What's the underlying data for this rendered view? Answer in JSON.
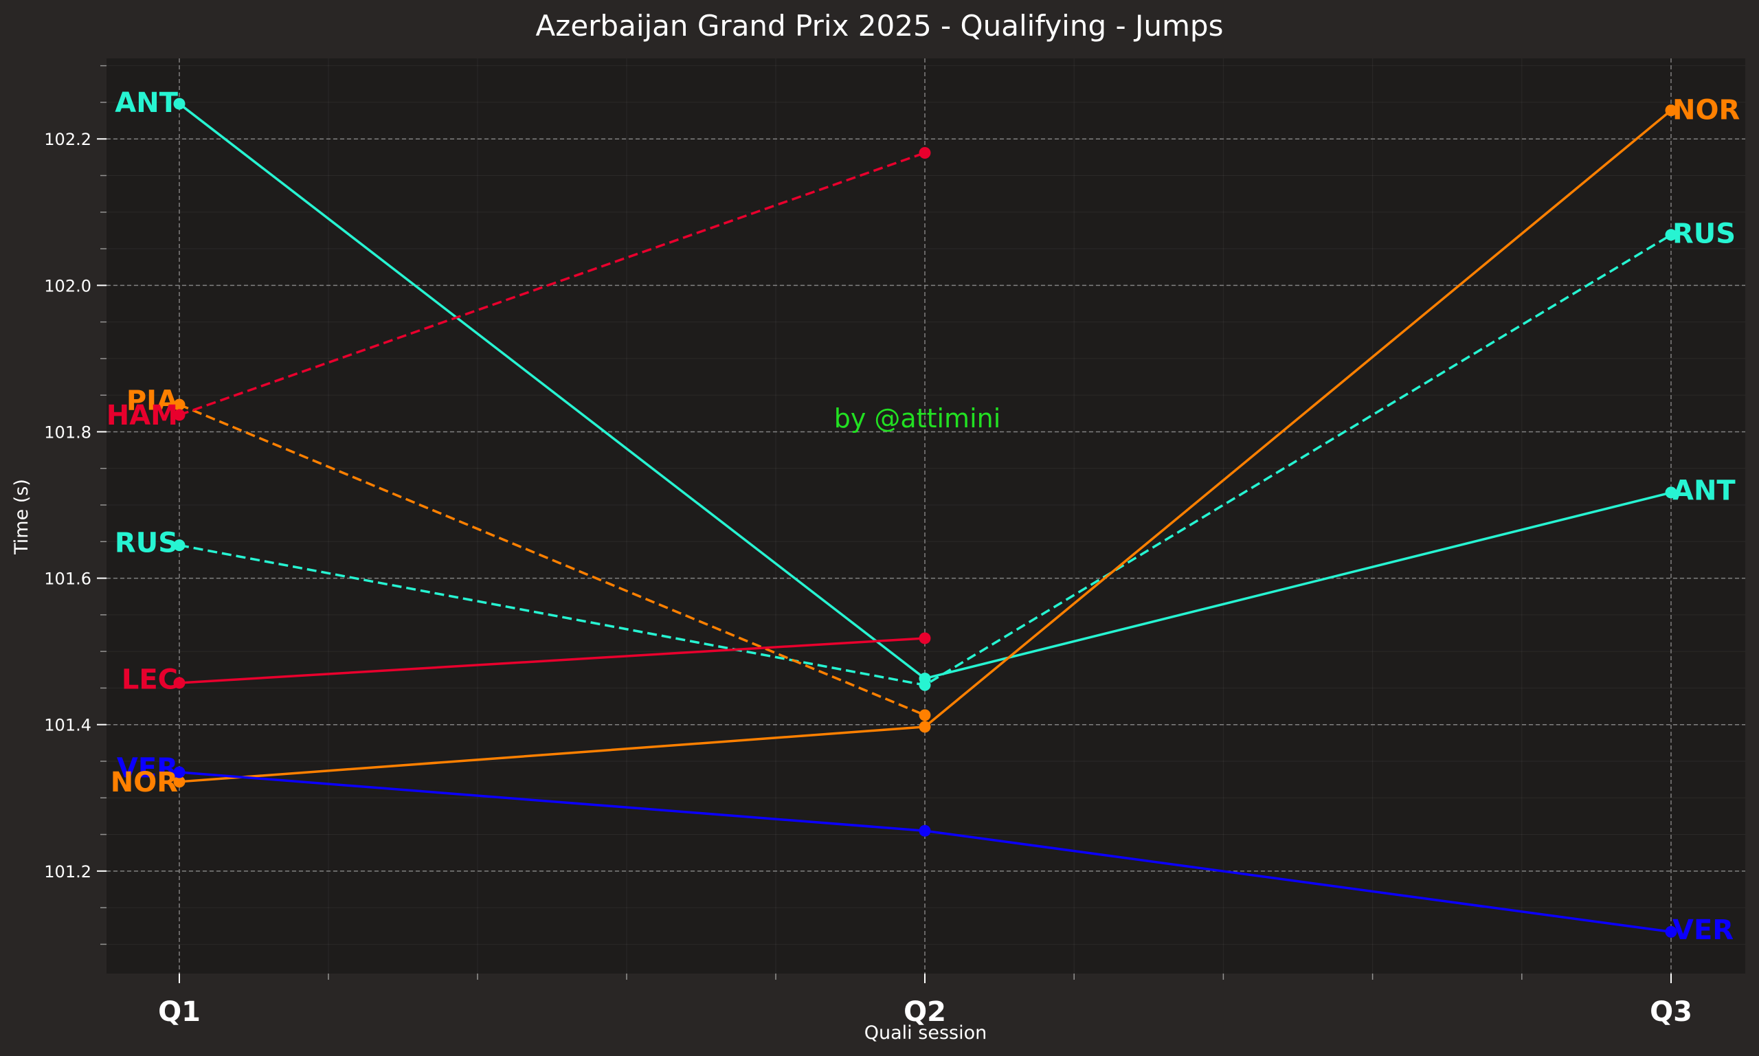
{
  "chart_data": {
    "type": "line",
    "title": "Azerbaijan Grand Prix 2025 - Qualifying - Jumps",
    "xlabel": "Quali session",
    "ylabel": "Time (s)",
    "categories": [
      "Q1",
      "Q2",
      "Q3"
    ],
    "ylim": [
      101.06,
      102.31
    ],
    "yticks": [
      101.2,
      101.4,
      101.6,
      101.8,
      102.0,
      102.2
    ],
    "grid": true,
    "watermark": "by @attimini",
    "colors": {
      "background": "#292625",
      "plot_background": "#1e1c1b",
      "watermark": "#22e022"
    },
    "series": [
      {
        "name": "ANT",
        "color": "#27f4d2",
        "dash": "solid",
        "values": [
          102.248,
          101.463,
          101.717
        ]
      },
      {
        "name": "RUS",
        "color": "#27f4d2",
        "dash": "dashed",
        "values": [
          101.645,
          101.454,
          102.069
        ]
      },
      {
        "name": "NOR",
        "color": "#ff8000",
        "dash": "solid",
        "values": [
          101.322,
          101.397,
          102.239
        ]
      },
      {
        "name": "PIA",
        "color": "#ff8000",
        "dash": "dashed",
        "values": [
          101.837,
          101.413,
          null
        ]
      },
      {
        "name": "LEC",
        "color": "#e8002d",
        "dash": "solid",
        "values": [
          101.457,
          101.518,
          null
        ]
      },
      {
        "name": "HAM",
        "color": "#e8002d",
        "dash": "dashed",
        "values": [
          101.823,
          102.181,
          null
        ]
      },
      {
        "name": "VER",
        "color": "#0b00ff",
        "dash": "solid",
        "values": [
          101.335,
          101.255,
          101.117
        ]
      }
    ],
    "start_labels": [
      {
        "text": "ANT",
        "color": "#27f4d2",
        "y": 102.25
      },
      {
        "text": "PIA",
        "color": "#ff8000",
        "y": 101.843
      },
      {
        "text": "HAM",
        "color": "#e8002d",
        "y": 101.823
      },
      {
        "text": "RUS",
        "color": "#27f4d2",
        "y": 101.649
      },
      {
        "text": "LEC",
        "color": "#e8002d",
        "y": 101.462
      },
      {
        "text": "VER",
        "color": "#0b00ff",
        "y": 101.341
      },
      {
        "text": "NOR",
        "color": "#ff8000",
        "y": 101.322
      }
    ],
    "end_labels": [
      {
        "text": "NOR",
        "color": "#ff8000",
        "y": 102.24
      },
      {
        "text": "RUS",
        "color": "#27f4d2",
        "y": 102.071
      },
      {
        "text": "ANT",
        "color": "#27f4d2",
        "y": 101.72
      },
      {
        "text": "VER",
        "color": "#0b00ff",
        "y": 101.12
      }
    ]
  }
}
